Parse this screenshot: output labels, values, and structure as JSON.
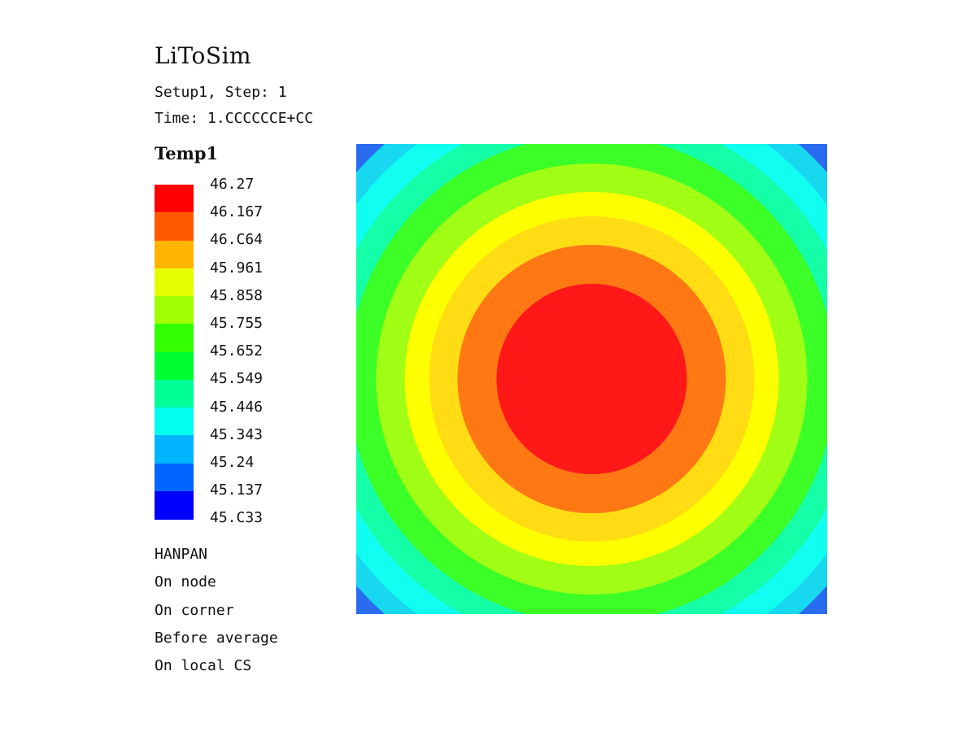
{
  "header": {
    "app_title": "LiToSim",
    "step_line": "Setup1, Step: 1",
    "time_line": "Time: 1.CCCCCCE+CC"
  },
  "legend": {
    "variable": "Temp1",
    "labels": [
      "46.27",
      "46.167",
      "46.C64",
      "45.961",
      "45.858",
      "45.755",
      "45.652",
      "45.549",
      "45.446",
      "45.343",
      "45.24",
      "45.137",
      "45.C33"
    ],
    "colors_top_to_bottom": [
      "#ff0000",
      "#ff5a00",
      "#ffb400",
      "#e6ff00",
      "#a0ff00",
      "#32ff00",
      "#00ff32",
      "#00ff96",
      "#00fff0",
      "#00b4ff",
      "#0064ff",
      "#0000ff"
    ]
  },
  "options": {
    "lines": [
      "HANPAN",
      "On node",
      "On corner",
      "Before average",
      "On local CS"
    ]
  },
  "plot": {
    "band_colors_outer_to_center": [
      "#1010dd",
      "#2a6cf0",
      "#18d8f0",
      "#10fff0",
      "#14ffa8",
      "#3cff28",
      "#a0ff14",
      "#ffff00",
      "#ffdc14",
      "#ff7814",
      "#ff1818"
    ]
  }
}
